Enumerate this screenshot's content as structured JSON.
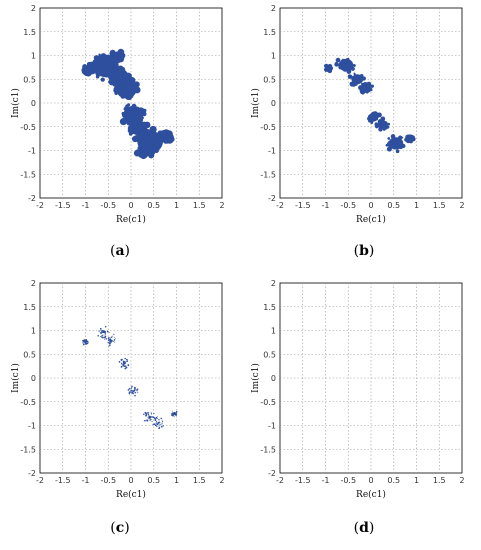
{
  "chart_data": [
    {
      "type": "scatter",
      "panel": "a",
      "caption_label": "a",
      "fill": "solid",
      "xlabel": "Re(c1)",
      "ylabel": "Im(c1)",
      "xlim": [
        -2,
        2
      ],
      "ylim": [
        -2,
        2
      ],
      "xticks": [
        "-2",
        "-1.5",
        "-1",
        "-0.5",
        "0",
        "0.5",
        "1",
        "1.5",
        "2"
      ],
      "yticks": [
        "2",
        "1.5",
        "1",
        "0.5",
        "0",
        "-0.5",
        "-1",
        "-1.5",
        "-2"
      ],
      "grid": true,
      "color": "#2e4f9e",
      "blobs": [
        {
          "x": -0.55,
          "y": 0.78,
          "r": 0.28
        },
        {
          "x": -0.25,
          "y": 0.55,
          "r": 0.2
        },
        {
          "x": -0.1,
          "y": 0.28,
          "r": 0.22
        },
        {
          "x": 0.05,
          "y": -0.25,
          "r": 0.22
        },
        {
          "x": 0.15,
          "y": -0.52,
          "r": 0.18
        },
        {
          "x": 0.42,
          "y": -0.82,
          "r": 0.28
        },
        {
          "x": -0.92,
          "y": 0.72,
          "r": 0.1
        },
        {
          "x": -0.3,
          "y": 1.0,
          "r": 0.1
        },
        {
          "x": 0.78,
          "y": -0.72,
          "r": 0.1
        },
        {
          "x": 0.25,
          "y": -1.02,
          "r": 0.1
        }
      ]
    },
    {
      "type": "scatter",
      "panel": "b",
      "caption_label": "b",
      "fill": "lighter",
      "xlabel": "Re(c1)",
      "ylabel": "Im(c1)",
      "xlim": [
        -2,
        2
      ],
      "ylim": [
        -2,
        2
      ],
      "xticks": [
        "-2",
        "-1.5",
        "-1",
        "-0.5",
        "0",
        "0.5",
        "1",
        "1.5",
        "2"
      ],
      "yticks": [
        "2",
        "1.5",
        "1",
        "0.5",
        "0",
        "-0.5",
        "-1",
        "-1.5",
        "-2"
      ],
      "grid": true,
      "color": "#2e4f9e",
      "blobs": [
        {
          "x": -0.55,
          "y": 0.8,
          "r": 0.2
        },
        {
          "x": -0.3,
          "y": 0.5,
          "r": 0.16
        },
        {
          "x": -0.1,
          "y": 0.3,
          "r": 0.14
        },
        {
          "x": 0.05,
          "y": -0.3,
          "r": 0.14
        },
        {
          "x": 0.25,
          "y": -0.45,
          "r": 0.14
        },
        {
          "x": 0.55,
          "y": -0.85,
          "r": 0.2
        },
        {
          "x": -0.95,
          "y": 0.72,
          "r": 0.08
        },
        {
          "x": 0.85,
          "y": -0.75,
          "r": 0.08
        }
      ]
    },
    {
      "type": "scatter",
      "panel": "c",
      "caption_label": "c",
      "fill": "sparse",
      "xlabel": "Re(c1)",
      "ylabel": "Im(c1)",
      "xlim": [
        -2,
        2
      ],
      "ylim": [
        -2,
        2
      ],
      "xticks": [
        "-2",
        "-1.5",
        "-1",
        "-0.5",
        "0",
        "0.5",
        "1",
        "1.5",
        "2"
      ],
      "yticks": [
        "2",
        "1.5",
        "1",
        "0.5",
        "0",
        "-0.5",
        "-1",
        "-1.5",
        "-2"
      ],
      "grid": true,
      "color": "#2e4f9e",
      "blobs": [
        {
          "x": -0.6,
          "y": 0.95,
          "r": 0.1
        },
        {
          "x": -0.45,
          "y": 0.8,
          "r": 0.1
        },
        {
          "x": -0.15,
          "y": 0.3,
          "r": 0.08
        },
        {
          "x": 0.05,
          "y": -0.28,
          "r": 0.08
        },
        {
          "x": 0.4,
          "y": -0.82,
          "r": 0.1
        },
        {
          "x": 0.6,
          "y": -0.95,
          "r": 0.1
        },
        {
          "x": -1.0,
          "y": 0.75,
          "r": 0.05
        },
        {
          "x": 0.95,
          "y": -0.75,
          "r": 0.05
        }
      ]
    },
    {
      "type": "scatter",
      "panel": "d",
      "caption_label": "d",
      "fill": "empty",
      "xlabel": "Re(c1)",
      "ylabel": "Im(c1)",
      "xlim": [
        -2,
        2
      ],
      "ylim": [
        -2,
        2
      ],
      "xticks": [
        "-2",
        "-1.5",
        "-1",
        "-0.5",
        "0",
        "0.5",
        "1",
        "1.5",
        "2"
      ],
      "yticks": [
        "2",
        "1.5",
        "1",
        "0.5",
        "0",
        "-0.5",
        "-1",
        "-1.5",
        "-2"
      ],
      "grid": true,
      "color": "#2e4f9e",
      "blobs": []
    }
  ],
  "captions": [
    "a",
    "b",
    "c",
    "d"
  ]
}
